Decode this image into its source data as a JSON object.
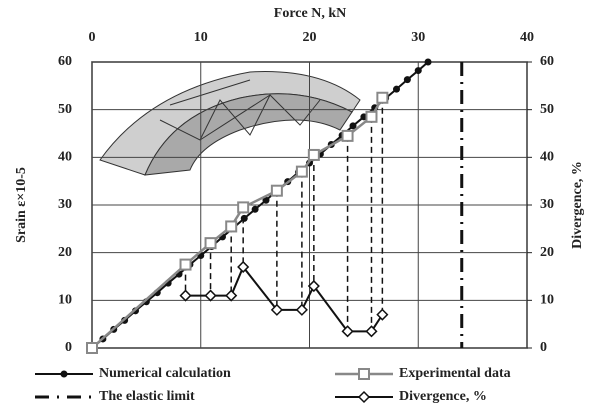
{
  "chart_data": {
    "type": "line",
    "x_label": "Force N, kN",
    "y_label": "Srain ε×10-5",
    "y2_label": "Divergence, %",
    "xlim": [
      0,
      40
    ],
    "xticks": [
      0,
      10,
      20,
      30,
      40
    ],
    "ylim": [
      0,
      60
    ],
    "yticks": [
      0,
      10,
      20,
      30,
      40,
      50,
      60
    ],
    "y2lim": [
      0,
      60
    ],
    "y2ticks": [
      0,
      10,
      20,
      30,
      40,
      50,
      60
    ],
    "grid": true,
    "series": [
      {
        "name": "Numerical calculation",
        "color": "#111111",
        "marker": "circle",
        "x": [
          0,
          1,
          2,
          3,
          4,
          5,
          6,
          7,
          8,
          9,
          10,
          11,
          12,
          13,
          14,
          15,
          16,
          17,
          18,
          19,
          20,
          21,
          22,
          23,
          24,
          25,
          26,
          27,
          28,
          29,
          30,
          30.9
        ],
        "values": [
          0,
          1.9,
          3.9,
          5.8,
          7.8,
          9.7,
          11.6,
          13.6,
          15.5,
          17.5,
          19.4,
          21.3,
          23.3,
          25.2,
          27.2,
          29.1,
          31,
          33,
          34.9,
          36.9,
          38.8,
          40.7,
          42.7,
          44.6,
          46.6,
          48.5,
          50.4,
          52.4,
          54.3,
          56.3,
          58.2,
          60
        ]
      },
      {
        "name": "Experimental data",
        "color": "#888888",
        "marker": "square",
        "x": [
          0,
          8.6,
          10.9,
          12.8,
          13.9,
          17,
          19.3,
          20.4,
          23.5,
          25.7,
          26.7
        ],
        "values": [
          0,
          17.5,
          22,
          25.5,
          29.5,
          33,
          37,
          40.5,
          44.5,
          48.5,
          52.5
        ]
      },
      {
        "name": "Divergence, %",
        "color": "#111111",
        "marker": "diamond",
        "axis": "y2",
        "x": [
          8.6,
          10.9,
          12.8,
          13.9,
          17,
          19.3,
          20.4,
          23.5,
          25.7,
          26.7
        ],
        "values": [
          11,
          11,
          11,
          17,
          8,
          8,
          13,
          3.5,
          3.5,
          7
        ]
      }
    ],
    "vlines": [
      {
        "name": "The elastic limit",
        "x": 34,
        "color": "#111111"
      }
    ]
  }
}
